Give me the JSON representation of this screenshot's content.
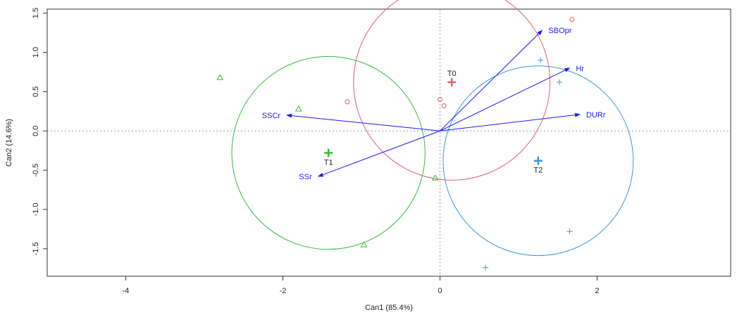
{
  "chart_data": {
    "type": "scatter",
    "title": "",
    "xlabel": "Can1 (85.4%)",
    "ylabel": "Can2 (14.6%)",
    "xlim": [
      -5.0,
      3.7
    ],
    "ylim": [
      -1.85,
      1.55
    ],
    "x_ticks": [
      "-4",
      "-2",
      "0",
      "2"
    ],
    "y_ticks": [
      "-1.5",
      "-1.0",
      "-0.5",
      "0.0",
      "0.5",
      "1.0",
      "1.5"
    ],
    "grid": false,
    "reference_lines": {
      "x": 0,
      "y": 0,
      "style": "dotted"
    },
    "colors": {
      "T0": "#e0606e",
      "T1": "#3cb83c",
      "T2": "#3c96dc",
      "arrows": "#1a1aff"
    },
    "groups": [
      {
        "label": "T0",
        "marker": "circle",
        "color": "#e0606e",
        "centroid": [
          0.15,
          0.62
        ],
        "circle_radius": 1.25,
        "points": [
          [
            1.68,
            1.42
          ],
          [
            -1.18,
            0.37
          ],
          [
            0.0,
            0.4
          ],
          [
            0.05,
            0.32
          ]
        ]
      },
      {
        "label": "T1",
        "marker": "triangle",
        "color": "#3cb83c",
        "centroid": [
          -1.42,
          -0.28
        ],
        "circle_radius": 1.23,
        "points": [
          [
            -2.8,
            0.68
          ],
          [
            -1.8,
            0.28
          ],
          [
            -0.97,
            -1.45
          ],
          [
            -0.06,
            -0.6
          ]
        ]
      },
      {
        "label": "T2",
        "marker": "plus",
        "color": "#3c96dc",
        "centroid": [
          1.25,
          -0.38
        ],
        "circle_radius": 1.21,
        "points": [
          [
            1.28,
            0.9
          ],
          [
            1.52,
            0.62
          ],
          [
            1.65,
            -1.28
          ],
          [
            0.58,
            -1.74
          ]
        ]
      }
    ],
    "vectors": [
      {
        "label": "SBOpr",
        "x": 1.3,
        "y": 1.28
      },
      {
        "label": "Hr",
        "x": 1.65,
        "y": 0.8
      },
      {
        "label": "DURr",
        "x": 1.78,
        "y": 0.21
      },
      {
        "label": "SSCr",
        "x": -1.95,
        "y": 0.2
      },
      {
        "label": "SSr",
        "x": -1.55,
        "y": -0.58
      }
    ]
  }
}
